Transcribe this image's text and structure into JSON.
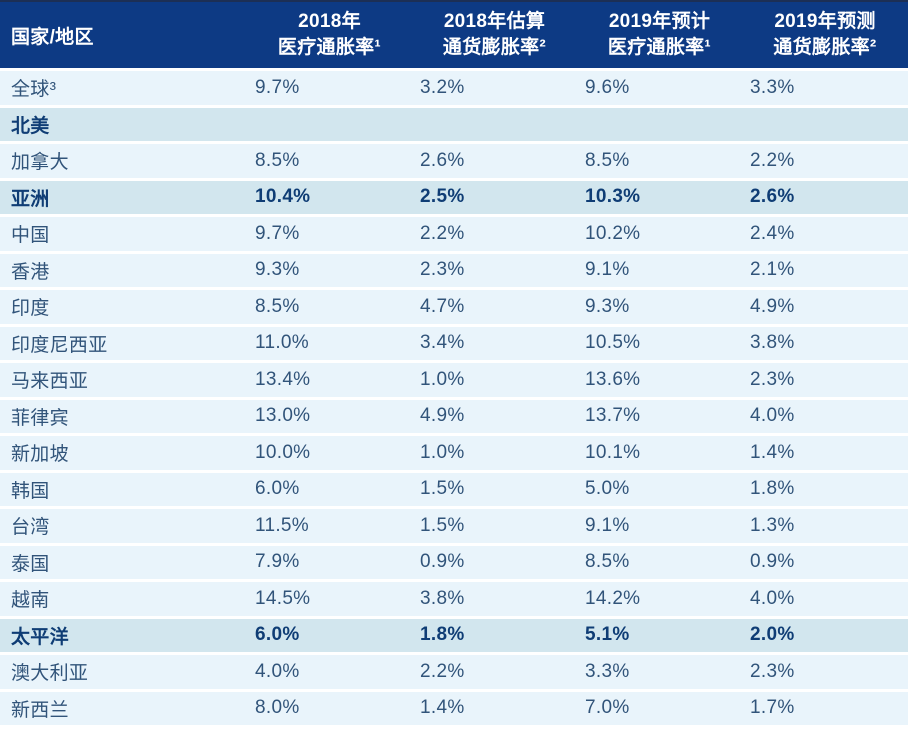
{
  "table": {
    "columns": [
      {
        "line1": "国家/地区",
        "line2": ""
      },
      {
        "line1": "2018年",
        "line2": "医疗通胀率¹"
      },
      {
        "line1": "2018年估算",
        "line2": "通货膨胀率²"
      },
      {
        "line1": "2019年预计",
        "line2": "医疗通胀率¹"
      },
      {
        "line1": "2019年预测",
        "line2": "通货膨胀率²"
      }
    ],
    "rows": [
      {
        "name": "全球³",
        "type": "regular",
        "values": [
          "9.7%",
          "3.2%",
          "9.6%",
          "3.3%"
        ]
      },
      {
        "name": "北美",
        "type": "section",
        "values": [
          "",
          "",
          "",
          ""
        ]
      },
      {
        "name": "加拿大",
        "type": "regular",
        "values": [
          "8.5%",
          "2.6%",
          "8.5%",
          "2.2%"
        ]
      },
      {
        "name": "亚洲",
        "type": "section",
        "values": [
          "10.4%",
          "2.5%",
          "10.3%",
          "2.6%"
        ]
      },
      {
        "name": "中国",
        "type": "regular",
        "values": [
          "9.7%",
          "2.2%",
          "10.2%",
          "2.4%"
        ]
      },
      {
        "name": "香港",
        "type": "regular",
        "values": [
          "9.3%",
          "2.3%",
          "9.1%",
          "2.1%"
        ]
      },
      {
        "name": "印度",
        "type": "regular",
        "values": [
          "8.5%",
          "4.7%",
          "9.3%",
          "4.9%"
        ]
      },
      {
        "name": "印度尼西亚",
        "type": "regular",
        "values": [
          "11.0%",
          "3.4%",
          "10.5%",
          "3.8%"
        ]
      },
      {
        "name": "马来西亚",
        "type": "regular",
        "values": [
          "13.4%",
          "1.0%",
          "13.6%",
          "2.3%"
        ]
      },
      {
        "name": "菲律宾",
        "type": "regular",
        "values": [
          "13.0%",
          "4.9%",
          "13.7%",
          "4.0%"
        ]
      },
      {
        "name": "新加坡",
        "type": "regular",
        "values": [
          "10.0%",
          "1.0%",
          "10.1%",
          "1.4%"
        ]
      },
      {
        "name": "韩国",
        "type": "regular",
        "values": [
          "6.0%",
          "1.5%",
          "5.0%",
          "1.8%"
        ]
      },
      {
        "name": "台湾",
        "type": "regular",
        "values": [
          "11.5%",
          "1.5%",
          "9.1%",
          "1.3%"
        ]
      },
      {
        "name": "泰国",
        "type": "regular",
        "values": [
          "7.9%",
          "0.9%",
          "8.5%",
          "0.9%"
        ]
      },
      {
        "name": "越南",
        "type": "regular",
        "values": [
          "14.5%",
          "3.8%",
          "14.2%",
          "4.0%"
        ]
      },
      {
        "name": "太平洋",
        "type": "section",
        "values": [
          "6.0%",
          "1.8%",
          "5.1%",
          "2.0%"
        ]
      },
      {
        "name": "澳大利亚",
        "type": "regular",
        "values": [
          "4.0%",
          "2.2%",
          "3.3%",
          "2.3%"
        ]
      },
      {
        "name": "新西兰",
        "type": "regular",
        "values": [
          "8.0%",
          "1.4%",
          "7.0%",
          "1.7%"
        ]
      }
    ]
  },
  "chart_data": {
    "type": "table",
    "unit": "%",
    "categories": [
      "全球",
      "北美",
      "加拿大",
      "亚洲",
      "中国",
      "香港",
      "印度",
      "印度尼西亚",
      "马来西亚",
      "菲律宾",
      "新加坡",
      "韩国",
      "台湾",
      "泰国",
      "越南",
      "太平洋",
      "澳大利亚",
      "新西兰"
    ],
    "section_rows": [
      "北美",
      "亚洲",
      "太平洋"
    ],
    "series": [
      {
        "name": "2018年医疗通胀率",
        "values": [
          9.7,
          null,
          8.5,
          10.4,
          9.7,
          9.3,
          8.5,
          11.0,
          13.4,
          13.0,
          10.0,
          6.0,
          11.5,
          7.9,
          14.5,
          6.0,
          4.0,
          8.0
        ]
      },
      {
        "name": "2018年估算通货膨胀率",
        "values": [
          3.2,
          null,
          2.6,
          2.5,
          2.2,
          2.3,
          4.7,
          3.4,
          1.0,
          4.9,
          1.0,
          1.5,
          1.5,
          0.9,
          3.8,
          1.8,
          2.2,
          1.4
        ]
      },
      {
        "name": "2019年预计医疗通胀率",
        "values": [
          9.6,
          null,
          8.5,
          10.3,
          10.2,
          9.1,
          9.3,
          10.5,
          13.6,
          13.7,
          10.1,
          5.0,
          9.1,
          8.5,
          14.2,
          5.1,
          3.3,
          7.0
        ]
      },
      {
        "name": "2019年预测通货膨胀率",
        "values": [
          3.3,
          null,
          2.2,
          2.6,
          2.4,
          2.1,
          4.9,
          3.8,
          2.3,
          4.0,
          1.4,
          1.8,
          1.3,
          0.9,
          4.0,
          2.0,
          2.3,
          1.7
        ]
      }
    ],
    "footnote_markers": {
      "medical": "1",
      "general": "2",
      "global": "3"
    }
  },
  "colors": {
    "header_bg": "#0d3a84",
    "header_top_edge": "#1c2f55",
    "header_text": "#ffffff",
    "row_bg": "#e9f4fb",
    "section_bg": "#d2e6ee",
    "text_regular": "#31547a",
    "text_section": "#0f3d75",
    "separator": "#ffffff"
  }
}
